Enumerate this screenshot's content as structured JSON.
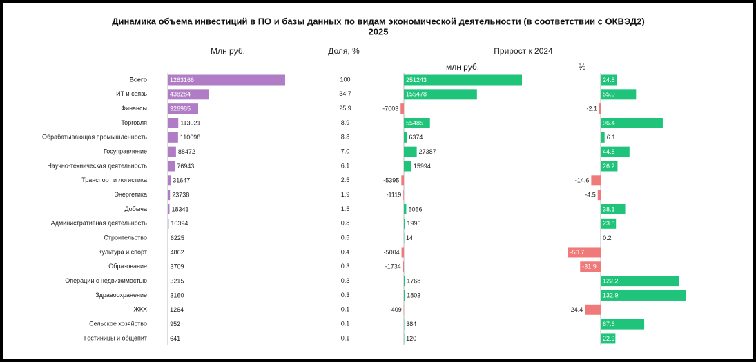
{
  "chart_data": {
    "type": "bar-table",
    "title": "Динамика объема инвестиций в ПО и базы данных по видам экономической деятельности (в соответствии с ОКВЭД2)",
    "subtitle": "2025",
    "group_header": "Прирост к 2024",
    "categories": [
      "Всего",
      "ИТ и связь",
      "Финансы",
      "Торговля",
      "Обрабатывающая промышленность",
      "Госуправление",
      "Научно-техническая деятельность",
      "Транспорт и логистика",
      "Энергетика",
      "Добыча",
      "Административная деятельность",
      "Строительство",
      "Культура и спорт",
      "Образование",
      "Операции с недвижимостью",
      "Здравоохранение",
      "ЖКХ",
      "Сельское хозяйство",
      "Гостиницы и общепит"
    ],
    "columns": [
      {
        "name": "Млн руб.",
        "kind": "bar",
        "color": "#b07cc6",
        "values": [
          1263166,
          438284,
          326985,
          113021,
          110698,
          88472,
          76943,
          31647,
          23738,
          18341,
          10394,
          6225,
          4862,
          3709,
          3215,
          3160,
          1264,
          952,
          641
        ]
      },
      {
        "name": "Доля, %",
        "kind": "text",
        "values": [
          100,
          34.7,
          25.9,
          8.9,
          8.8,
          7,
          6.1,
          2.5,
          1.9,
          1.5,
          0.8,
          0.5,
          0.4,
          0.3,
          0.3,
          0.3,
          0.1,
          0.1,
          0.1
        ],
        "value_labels": [
          "100",
          "34.7",
          "25.9",
          "8.9",
          "8.8",
          "7.0",
          "6.1",
          "2.5",
          "1.9",
          "1.5",
          "0.8",
          "0.5",
          "0.4",
          "0.3",
          "0.3",
          "0.3",
          "0.1",
          "0.1",
          "0.1"
        ]
      },
      {
        "name": "млн руб.",
        "kind": "bar",
        "color": "#1fc47a",
        "negative_color": "#f07a7a",
        "values": [
          251243,
          155478,
          -7003,
          55485,
          6374,
          27387,
          15994,
          -5395,
          -1119,
          5056,
          1996,
          14,
          -5004,
          -1734,
          1768,
          1803,
          -409,
          384,
          120
        ]
      },
      {
        "name": "%",
        "kind": "bar",
        "color": "#1fc47a",
        "negative_color": "#f07a7a",
        "values": [
          24.8,
          55,
          -2.1,
          96.4,
          6.1,
          44.8,
          26.2,
          -14.6,
          -4.5,
          38.1,
          23.8,
          0.2,
          -50.7,
          -31.9,
          122.2,
          132.9,
          -24.4,
          67.6,
          22.9
        ],
        "value_labels": [
          "24.8",
          "55.0",
          "-2.1",
          "96.4",
          "6.1",
          "44.8",
          "26.2",
          "-14.6",
          "-4.5",
          "38.1",
          "23.8",
          "0.2",
          "-50.7",
          "-31.9",
          "122.2",
          "132.9",
          "-24.4",
          "67.6",
          "22.9"
        ]
      }
    ]
  }
}
